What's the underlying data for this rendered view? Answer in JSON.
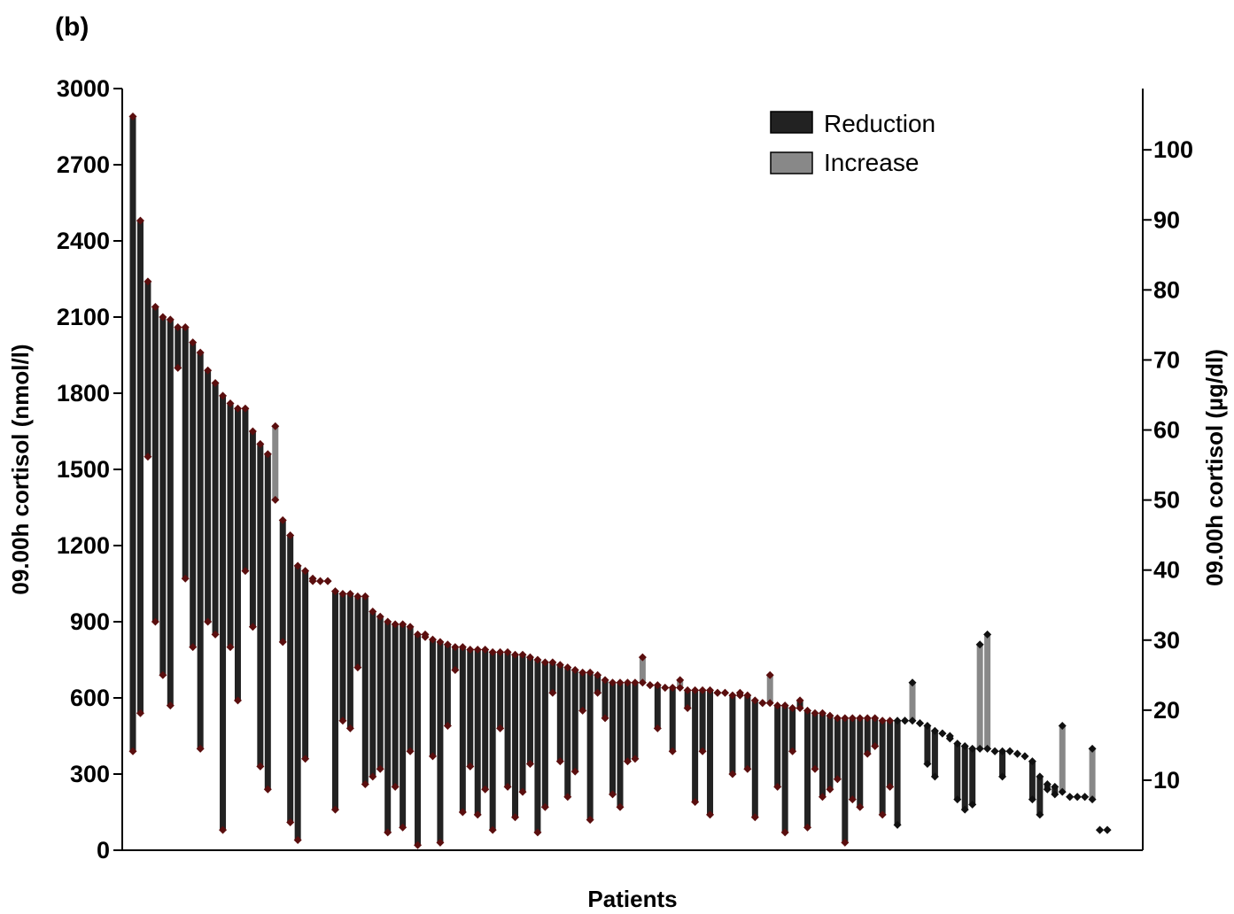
{
  "panel_label": "(b)",
  "chart_data": {
    "type": "dumbbell",
    "title": "",
    "xlabel": "Patients",
    "ylabel_left": "09.00h cortisol (nmol/l)",
    "ylabel_right": "09.00h cortisol (µg/dl)",
    "ylim_left": [
      0,
      3000
    ],
    "yticks_left": [
      0,
      300,
      600,
      900,
      1200,
      1500,
      1800,
      2100,
      2400,
      2700,
      3000
    ],
    "ylim_right": [
      0,
      108.75
    ],
    "yticks_right": [
      10,
      20,
      30,
      40,
      50,
      60,
      70,
      80,
      90,
      100
    ],
    "grid": false,
    "legend": {
      "placement": "top-right",
      "entries": [
        {
          "label": "Reduction",
          "color": "#222222"
        },
        {
          "label": "Increase",
          "color": "#888888"
        }
      ]
    },
    "colors": {
      "reduction": "#222222",
      "increase": "#888888",
      "marker": "#5a0e0e",
      "marker_dark": "#111111"
    },
    "series": [
      {
        "name": "Reduction",
        "start_end": [
          [
            2890,
            390
          ],
          [
            2480,
            540
          ],
          [
            2240,
            1550
          ],
          [
            2140,
            900
          ],
          [
            2100,
            690
          ],
          [
            2090,
            570
          ],
          [
            2060,
            1900
          ],
          [
            2060,
            1070
          ],
          [
            2000,
            800
          ],
          [
            1960,
            400
          ],
          [
            1890,
            900
          ],
          [
            1840,
            850
          ],
          [
            1790,
            80
          ],
          [
            1760,
            800
          ],
          [
            1740,
            590
          ],
          [
            1740,
            1100
          ],
          [
            1650,
            880
          ],
          [
            1600,
            330
          ],
          [
            1560,
            240
          ],
          [
            1300,
            820
          ],
          [
            1240,
            110
          ],
          [
            1120,
            40
          ],
          [
            1100,
            360
          ],
          [
            1070,
            1060
          ],
          [
            1060,
            1060
          ],
          [
            1060,
            1060
          ],
          [
            1020,
            160
          ],
          [
            1010,
            510
          ],
          [
            1010,
            480
          ],
          [
            1000,
            720
          ],
          [
            1000,
            260
          ],
          [
            940,
            290
          ],
          [
            920,
            320
          ],
          [
            900,
            70
          ],
          [
            890,
            250
          ],
          [
            890,
            90
          ],
          [
            880,
            390
          ],
          [
            850,
            20
          ],
          [
            840,
            850
          ],
          [
            830,
            370
          ],
          [
            820,
            30
          ],
          [
            810,
            490
          ],
          [
            800,
            710
          ],
          [
            800,
            150
          ],
          [
            790,
            330
          ],
          [
            790,
            140
          ],
          [
            790,
            240
          ],
          [
            780,
            80
          ],
          [
            780,
            480
          ],
          [
            780,
            250
          ],
          [
            770,
            130
          ],
          [
            770,
            230
          ],
          [
            760,
            340
          ],
          [
            750,
            70
          ],
          [
            740,
            170
          ],
          [
            740,
            620
          ],
          [
            730,
            350
          ],
          [
            720,
            210
          ],
          [
            710,
            310
          ],
          [
            700,
            550
          ],
          [
            700,
            120
          ],
          [
            690,
            620
          ],
          [
            670,
            520
          ],
          [
            660,
            220
          ],
          [
            660,
            170
          ],
          [
            660,
            350
          ],
          [
            660,
            360
          ],
          [
            650,
            650
          ],
          [
            650,
            480
          ],
          [
            640,
            640
          ],
          [
            640,
            390
          ],
          [
            630,
            560
          ],
          [
            630,
            190
          ],
          [
            630,
            390
          ],
          [
            630,
            140
          ],
          [
            620,
            620
          ],
          [
            620,
            620
          ],
          [
            610,
            300
          ],
          [
            610,
            620
          ],
          [
            610,
            320
          ],
          [
            590,
            130
          ],
          [
            580,
            580
          ],
          [
            570,
            250
          ],
          [
            570,
            70
          ],
          [
            560,
            390
          ],
          [
            560,
            590
          ],
          [
            550,
            90
          ],
          [
            540,
            320
          ],
          [
            540,
            210
          ],
          [
            530,
            240
          ],
          [
            520,
            280
          ],
          [
            520,
            30
          ],
          [
            520,
            200
          ],
          [
            520,
            170
          ],
          [
            520,
            380
          ],
          [
            520,
            410
          ],
          [
            510,
            140
          ],
          [
            510,
            250
          ],
          [
            510,
            100
          ],
          [
            510,
            510
          ],
          [
            500,
            500
          ],
          [
            490,
            340
          ],
          [
            470,
            290
          ],
          [
            460,
            460
          ],
          [
            450,
            440
          ],
          [
            420,
            200
          ],
          [
            410,
            160
          ],
          [
            400,
            180
          ],
          [
            390,
            390
          ],
          [
            390,
            290
          ],
          [
            390,
            390
          ],
          [
            380,
            380
          ],
          [
            370,
            370
          ],
          [
            350,
            200
          ],
          [
            290,
            140
          ],
          [
            260,
            240
          ],
          [
            250,
            220
          ],
          [
            210,
            210
          ],
          [
            210,
            210
          ],
          [
            210,
            210
          ],
          [
            80,
            80
          ],
          [
            80,
            80
          ]
        ]
      },
      {
        "name": "Increase",
        "start_end": [
          [
            1380,
            1670
          ],
          [
            660,
            760
          ],
          [
            640,
            670
          ],
          [
            580,
            690
          ],
          [
            510,
            660
          ],
          [
            400,
            810
          ],
          [
            400,
            850
          ],
          [
            230,
            490
          ],
          [
            200,
            400
          ]
        ]
      }
    ]
  }
}
